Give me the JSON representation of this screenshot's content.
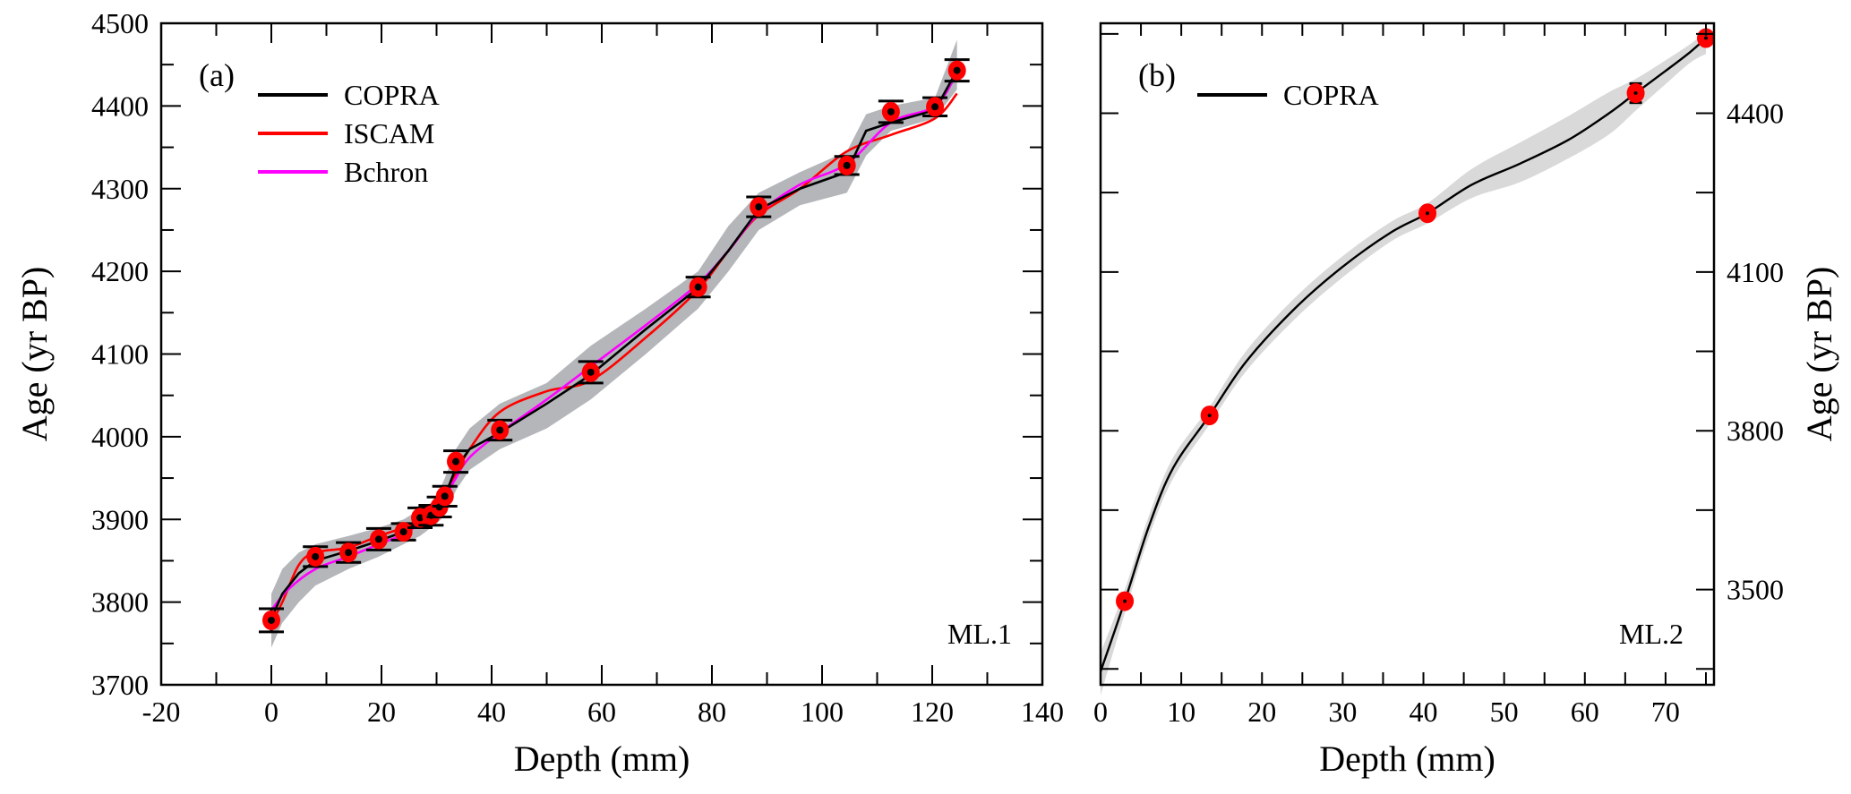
{
  "chart_data": [
    {
      "type": "line",
      "panel_label": "(a)",
      "annotation": "ML.1",
      "xlabel": "Depth (mm)",
      "ylabel": "Age (yr BP)",
      "xlim": [
        -20,
        140
      ],
      "ylim": [
        3700,
        4500
      ],
      "xticks": [
        -20,
        0,
        20,
        40,
        60,
        80,
        100,
        120,
        140
      ],
      "yticks": [
        3700,
        3800,
        3900,
        4000,
        4100,
        4200,
        4300,
        4400,
        4500
      ],
      "y_axis_side": "left",
      "legend": {
        "placement": "top-left",
        "entries": [
          "COPRA",
          "ISCAM",
          "Bchron"
        ]
      },
      "dates": {
        "depth": [
          0,
          8,
          14,
          19.5,
          24,
          27,
          29,
          30.5,
          31.5,
          33.5,
          41.5,
          58,
          77.5,
          88.5,
          104.5,
          112.5,
          120.5,
          124.5
        ],
        "age": [
          3778,
          3855,
          3860,
          3876,
          3885,
          3902,
          3905,
          3915,
          3928,
          3970,
          4008,
          4078,
          4181,
          4278,
          4328,
          4393,
          4399,
          4443
        ],
        "error": [
          14,
          12,
          12,
          13,
          10,
          12,
          12,
          12,
          12,
          13,
          12,
          13,
          12,
          12,
          11,
          13,
          11,
          13
        ]
      },
      "series": [
        {
          "name": "COPRA",
          "color": "#000000",
          "depth": [
            0,
            2,
            5,
            8,
            14,
            19.5,
            24,
            27,
            29,
            30.5,
            31.5,
            33.5,
            36,
            41.5,
            50,
            58,
            68,
            77.5,
            83,
            88.5,
            96,
            104.5,
            108,
            112.5,
            120.5,
            124.5
          ],
          "age": [
            3780,
            3810,
            3835,
            3850,
            3862,
            3874,
            3885,
            3898,
            3905,
            3914,
            3928,
            3962,
            3985,
            4005,
            4040,
            4075,
            4130,
            4180,
            4225,
            4275,
            4300,
            4320,
            4370,
            4380,
            4395,
            4443
          ],
          "band_upper": [
            3810,
            3840,
            3860,
            3870,
            3880,
            3890,
            3900,
            3912,
            3920,
            3935,
            3950,
            3985,
            4010,
            4040,
            4065,
            4110,
            4155,
            4200,
            4255,
            4295,
            4320,
            4345,
            4390,
            4400,
            4410,
            4480
          ],
          "band_lower": [
            3745,
            3775,
            3800,
            3820,
            3840,
            3855,
            3870,
            3880,
            3890,
            3898,
            3905,
            3935,
            3960,
            3985,
            4010,
            4045,
            4100,
            4155,
            4200,
            4250,
            4280,
            4295,
            4340,
            4370,
            4385,
            4420
          ]
        },
        {
          "name": "ISCAM",
          "color": "#ff0000",
          "depth": [
            -0.5,
            2,
            5,
            8,
            14,
            19.5,
            24,
            27,
            29,
            30.5,
            31.5,
            33.5,
            36,
            41.5,
            50,
            58,
            68,
            77.5,
            83,
            88.5,
            96,
            104.5,
            112.5,
            120.5,
            124.5
          ],
          "age": [
            3768,
            3800,
            3845,
            3860,
            3866,
            3880,
            3890,
            3900,
            3908,
            3918,
            3932,
            3955,
            3985,
            4030,
            4055,
            4068,
            4120,
            4178,
            4225,
            4268,
            4300,
            4345,
            4365,
            4385,
            4415
          ]
        },
        {
          "name": "Bchron",
          "color": "#ff00ff",
          "depth": [
            0,
            3,
            8,
            14,
            19.5,
            24,
            27,
            29,
            30.5,
            31.5,
            33.5,
            36,
            41.5,
            50,
            58,
            68,
            77.5,
            83,
            88.5,
            96,
            104.5,
            112.5,
            120.5,
            124.5
          ],
          "age": [
            3790,
            3815,
            3840,
            3855,
            3870,
            3882,
            3895,
            3904,
            3912,
            3925,
            3950,
            3975,
            4005,
            4045,
            4085,
            4135,
            4185,
            4225,
            4270,
            4305,
            4330,
            4380,
            4400,
            4440
          ]
        }
      ]
    },
    {
      "type": "line",
      "panel_label": "(b)",
      "annotation": "ML.2",
      "xlabel": "Depth (mm)",
      "ylabel": "Age (yr BP)",
      "xlim": [
        0,
        76
      ],
      "ylim": [
        3320,
        4570
      ],
      "xticks": [
        0,
        10,
        20,
        30,
        40,
        50,
        60,
        70
      ],
      "yticks_labeled": [
        3500,
        3800,
        4100,
        4400
      ],
      "yticks_minor": [
        3350,
        3650,
        3950,
        4250,
        4550
      ],
      "y_axis_side": "right",
      "legend": {
        "placement": "top-left",
        "entries": [
          "COPRA"
        ]
      },
      "dates": {
        "depth": [
          3,
          13.5,
          40.5,
          66.3,
          75
        ],
        "age": [
          3478,
          3829,
          4211,
          4438,
          4542
        ],
        "error": [
          8,
          8,
          8,
          18,
          10
        ]
      },
      "series": [
        {
          "name": "COPRA",
          "color": "#000000",
          "depth": [
            0,
            3,
            6,
            9,
            13.5,
            18,
            24,
            30,
            36,
            40.5,
            46,
            52,
            58,
            63,
            66.3,
            70,
            73,
            75
          ],
          "age": [
            3345,
            3478,
            3620,
            3730,
            3829,
            3930,
            4030,
            4110,
            4175,
            4211,
            4265,
            4305,
            4350,
            4400,
            4438,
            4480,
            4515,
            4542
          ],
          "band_upper": [
            3380,
            3500,
            3640,
            3750,
            3845,
            3950,
            4050,
            4130,
            4195,
            4230,
            4295,
            4345,
            4395,
            4440,
            4465,
            4500,
            4530,
            4555
          ],
          "band_lower": [
            3300,
            3455,
            3600,
            3710,
            3812,
            3912,
            4010,
            4090,
            4158,
            4192,
            4240,
            4270,
            4315,
            4360,
            4405,
            4455,
            4495,
            4512
          ]
        }
      ]
    }
  ]
}
